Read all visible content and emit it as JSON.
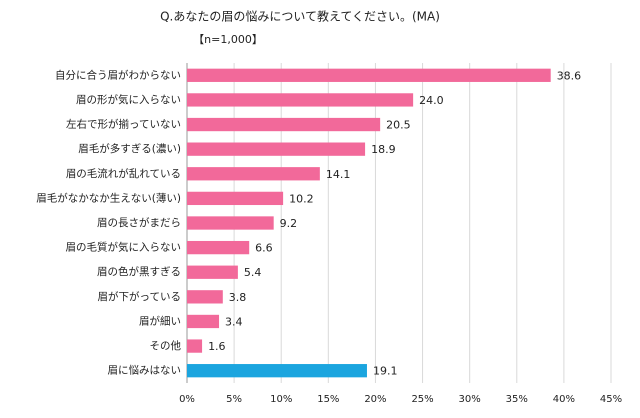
{
  "chart_data": {
    "type": "hbar",
    "title": "Q.あなたの眉の悩みについて教えてください。(MA)",
    "subtitle": "【n=1,000】",
    "categories": [
      "自分に合う眉がわからない",
      "眉の形が気に入らない",
      "左右で形が揃っていない",
      "眉毛が多すぎる(濃い)",
      "眉の毛流れが乱れている",
      "眉毛がなかなか生えない(薄い)",
      "眉の長さがまだら",
      "眉の毛質が気に入らない",
      "眉の色が黒すぎる",
      "眉が下がっている",
      "眉が細い",
      "その他",
      "眉に悩みはない"
    ],
    "values": [
      38.6,
      24.0,
      20.5,
      18.9,
      14.1,
      10.2,
      9.2,
      6.6,
      5.4,
      3.8,
      3.4,
      1.6,
      19.1
    ],
    "value_labels": [
      "38.6",
      "24.0",
      "20.5",
      "18.9",
      "14.1",
      "10.2",
      "9.2",
      "6.6",
      "5.4",
      "3.8",
      "3.4",
      "1.6",
      "19.1"
    ],
    "colors": [
      "#f2699a",
      "#f2699a",
      "#f2699a",
      "#f2699a",
      "#f2699a",
      "#f2699a",
      "#f2699a",
      "#f2699a",
      "#f2699a",
      "#f2699a",
      "#f2699a",
      "#f2699a",
      "#1ba5df"
    ],
    "xlim": [
      0,
      45
    ],
    "xticks": [
      {
        "value": 0,
        "label": "0%"
      },
      {
        "value": 5,
        "label": "5%"
      },
      {
        "value": 10,
        "label": "10%"
      },
      {
        "value": 15,
        "label": "15%"
      },
      {
        "value": 20,
        "label": "20%"
      },
      {
        "value": 25,
        "label": "25%"
      },
      {
        "value": 30,
        "label": "30%"
      },
      {
        "value": 35,
        "label": "35%"
      },
      {
        "value": 40,
        "label": "40%"
      },
      {
        "value": 45,
        "label": "45%"
      }
    ],
    "grid": true
  }
}
